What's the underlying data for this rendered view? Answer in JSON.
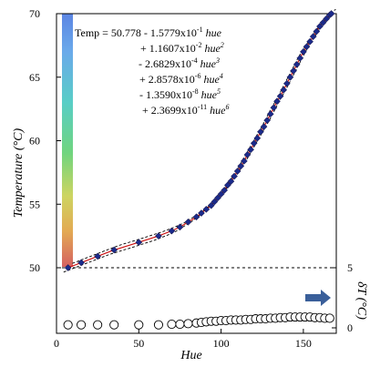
{
  "chart_data": {
    "type": "scatter",
    "xlabel": "Hue",
    "ylabel": "Temperature (°C)",
    "y2label": "δT (°C)",
    "xlim": [
      0,
      170
    ],
    "ylim": [
      45,
      70
    ],
    "y2lim": [
      0,
      10
    ],
    "xticks": [
      "0",
      "50",
      "100",
      "150"
    ],
    "xtick_values": [
      0,
      50,
      100,
      150
    ],
    "yticks": [
      "50",
      "55",
      "60",
      "65",
      "70"
    ],
    "ytick_values": [
      50,
      55,
      60,
      65,
      70
    ],
    "y2ticks": [
      "0",
      "5"
    ],
    "y2tick_values": [
      0,
      5
    ],
    "grid": false,
    "reference_line": {
      "y": 50,
      "style": "dashed"
    },
    "colors": {
      "fit": "#cc1010",
      "band": "#000000",
      "points": "#1a2a8c",
      "arrow": "#3a5f9a"
    },
    "equation": {
      "line1": {
        "prefix": "Temp = 50.778 - 1.5779x10",
        "exp": "-1",
        "var": "hue",
        "pow": ""
      },
      "line2": {
        "prefix": "+ 1.1607x10",
        "exp": "-2",
        "var": "hue",
        "pow": "2"
      },
      "line3": {
        "prefix": "- 2.6829x10",
        "exp": "-4",
        "var": "hue",
        "pow": "3"
      },
      "line4": {
        "prefix": "+ 2.8578x10",
        "exp": "-6",
        "var": "hue",
        "pow": "4"
      },
      "line5": {
        "prefix": "- 1.3590x10",
        "exp": "-8",
        "var": "hue",
        "pow": "5"
      },
      "line6": {
        "prefix": "+ 2.3699x10",
        "exp": "-11",
        "var": "hue",
        "pow": "6"
      }
    },
    "series": [
      {
        "marker": "diamond",
        "x": [
          7,
          15,
          25,
          35,
          50,
          62,
          70,
          75,
          80,
          85,
          88,
          91,
          94,
          96,
          98,
          100,
          102,
          104,
          106,
          108,
          110,
          112,
          114,
          116,
          118,
          120,
          122,
          124,
          126,
          128,
          130,
          132,
          134,
          136,
          138,
          140,
          142,
          144,
          146,
          148,
          150,
          152,
          154,
          156,
          158,
          160,
          162,
          164,
          166,
          167
        ],
        "y": [
          50.0,
          50.4,
          50.9,
          51.4,
          52.0,
          52.5,
          52.9,
          53.2,
          53.6,
          54.0,
          54.3,
          54.6,
          54.9,
          55.2,
          55.5,
          55.8,
          56.1,
          56.5,
          56.8,
          57.2,
          57.6,
          58.0,
          58.4,
          58.9,
          59.3,
          59.8,
          60.2,
          60.7,
          61.1,
          61.6,
          62.1,
          62.6,
          63.1,
          63.5,
          64.0,
          64.5,
          65.0,
          65.5,
          66.0,
          66.5,
          67.0,
          67.4,
          67.8,
          68.2,
          68.6,
          69.0,
          69.3,
          69.6,
          69.9,
          70.0
        ]
      },
      {
        "marker": "circle",
        "axis": "right",
        "x": [
          7,
          15,
          25,
          35,
          50,
          62,
          70,
          75,
          80,
          85,
          88,
          91,
          94,
          97,
          100,
          103,
          106,
          109,
          112,
          115,
          118,
          121,
          124,
          127,
          130,
          133,
          136,
          139,
          142,
          145,
          148,
          151,
          154,
          157,
          160,
          163,
          166
        ],
        "y": [
          0.25,
          0.25,
          0.25,
          0.25,
          0.25,
          0.25,
          0.3,
          0.3,
          0.35,
          0.4,
          0.45,
          0.5,
          0.55,
          0.55,
          0.6,
          0.6,
          0.65,
          0.65,
          0.65,
          0.7,
          0.7,
          0.75,
          0.75,
          0.75,
          0.8,
          0.8,
          0.85,
          0.85,
          0.9,
          0.9,
          0.9,
          0.9,
          0.9,
          0.85,
          0.85,
          0.8,
          0.8
        ]
      }
    ]
  }
}
